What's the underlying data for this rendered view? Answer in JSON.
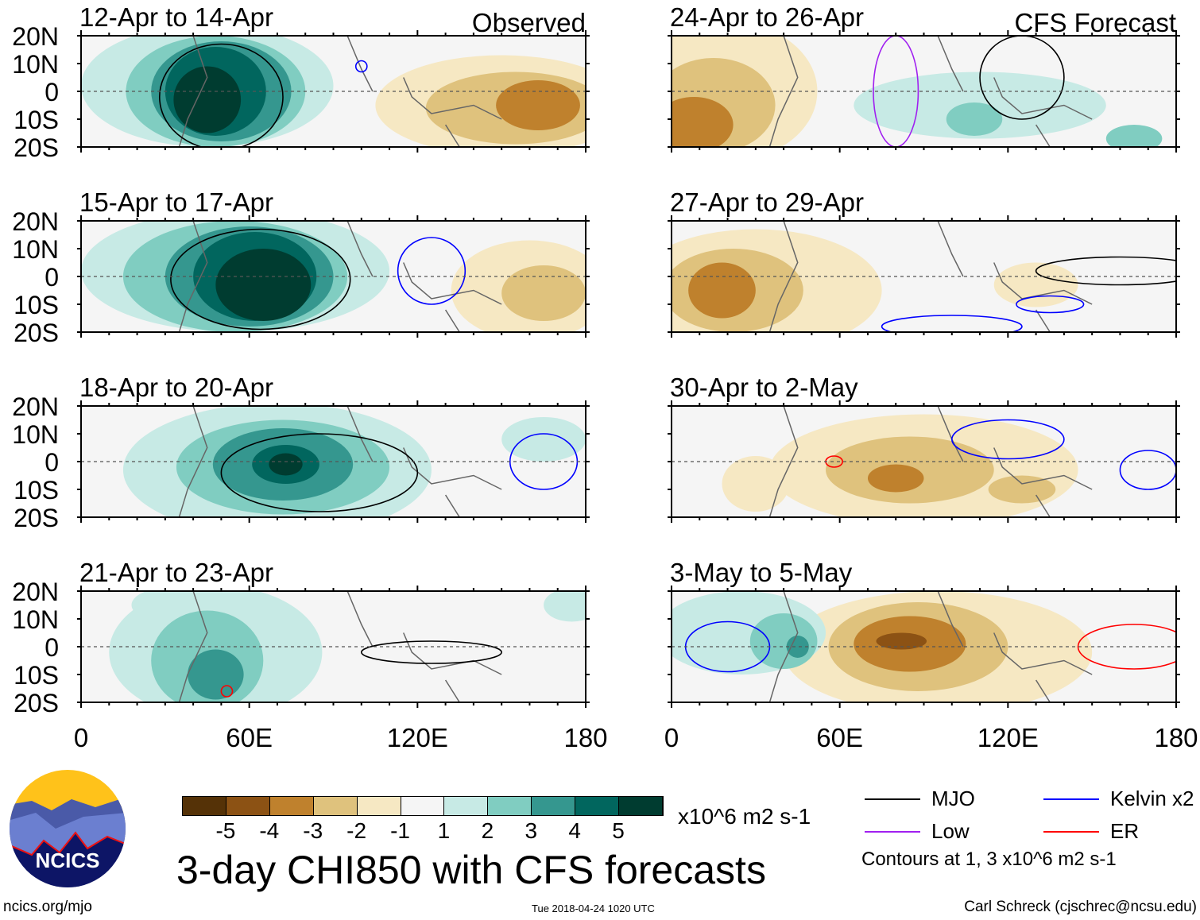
{
  "chart_data": {
    "type": "heatmap",
    "title": "3-day CHI850 with CFS forecasts",
    "units": "x10^6 m2 s-1",
    "column_headers": {
      "left": "Observed",
      "right": "CFS Forecast"
    },
    "lat_ticks": [
      "20N",
      "10N",
      "0",
      "10S",
      "20S"
    ],
    "lon_ticks": [
      "0",
      "60E",
      "120E",
      "180"
    ],
    "lon_range": [
      0,
      180
    ],
    "lat_range": [
      -20,
      20
    ],
    "colorbar": {
      "labels": [
        "-5",
        "-4",
        "-3",
        "-2",
        "-1",
        "1",
        "2",
        "3",
        "4",
        "5"
      ],
      "colors": [
        "#553207",
        "#8c5214",
        "#bf812d",
        "#dfc27d",
        "#f6e8c3",
        "#f5f5f5",
        "#c7eae5",
        "#80cdc1",
        "#35978f",
        "#01665e",
        "#003c30"
      ]
    },
    "legend": {
      "items": [
        {
          "label": "MJO",
          "color": "#000000"
        },
        {
          "label": "Kelvin x2",
          "color": "#0000ff"
        },
        {
          "label": "Low",
          "color": "#a020f0"
        },
        {
          "label": "ER",
          "color": "#ff0000"
        }
      ],
      "note": "Contours at 1, 3 x10^6 m2 s-1"
    },
    "panels": [
      {
        "title": "12-Apr to 14-Apr",
        "column": "left",
        "row": 0,
        "blobs": [
          [
            45,
            2,
            45,
            22,
            1
          ],
          [
            48,
            0,
            32,
            20,
            2
          ],
          [
            50,
            0,
            25,
            18,
            3
          ],
          [
            48,
            0,
            18,
            16,
            4
          ],
          [
            45,
            -3,
            12,
            12,
            5
          ],
          [
            150,
            -5,
            45,
            18,
            -1
          ],
          [
            155,
            -6,
            32,
            13,
            -2
          ],
          [
            163,
            -5,
            15,
            9,
            -3
          ]
        ],
        "contours": [
          [
            50,
            -2,
            22,
            19,
            "MJO"
          ],
          [
            100,
            9,
            2,
            2,
            "Kelvin"
          ]
        ]
      },
      {
        "title": "15-Apr to 17-Apr",
        "column": "left",
        "row": 1,
        "blobs": [
          [
            55,
            2,
            55,
            22,
            1
          ],
          [
            55,
            0,
            40,
            20,
            2
          ],
          [
            60,
            0,
            30,
            18,
            3
          ],
          [
            62,
            0,
            22,
            16,
            4
          ],
          [
            65,
            -3,
            17,
            13,
            5
          ],
          [
            160,
            -5,
            28,
            18,
            -1
          ],
          [
            165,
            -6,
            15,
            10,
            -2
          ]
        ],
        "contours": [
          [
            64,
            -1,
            32,
            18,
            "MJO"
          ],
          [
            125,
            2,
            12,
            12,
            "Kelvin"
          ]
        ]
      },
      {
        "title": "18-Apr to 20-Apr",
        "column": "left",
        "row": 2,
        "blobs": [
          [
            70,
            -3,
            55,
            24,
            1
          ],
          [
            72,
            -2,
            38,
            17,
            2
          ],
          [
            72,
            -1,
            25,
            13,
            3
          ],
          [
            73,
            -1,
            12,
            7,
            4
          ],
          [
            73,
            -1,
            6,
            4,
            5
          ],
          [
            165,
            8,
            15,
            8,
            1
          ]
        ],
        "contours": [
          [
            85,
            -4,
            35,
            14,
            "MJO"
          ],
          [
            165,
            0,
            12,
            10,
            "Kelvin"
          ]
        ]
      },
      {
        "title": "21-Apr to 23-Apr",
        "column": "left",
        "row": 3,
        "blobs": [
          [
            48,
            -2,
            38,
            24,
            1
          ],
          [
            45,
            -5,
            20,
            18,
            2
          ],
          [
            48,
            -10,
            10,
            9,
            3
          ],
          [
            30,
            15,
            12,
            6,
            1
          ],
          [
            175,
            15,
            10,
            6,
            1
          ]
        ],
        "contours": [
          [
            125,
            -2,
            25,
            4,
            "MJO"
          ],
          [
            52,
            -16,
            2,
            2,
            "ER"
          ]
        ]
      },
      {
        "title": "24-Apr to 26-Apr",
        "column": "right",
        "row": 0,
        "blobs": [
          [
            20,
            0,
            32,
            25,
            -1
          ],
          [
            15,
            -5,
            22,
            17,
            -2
          ],
          [
            8,
            -12,
            14,
            10,
            -3
          ],
          [
            110,
            -5,
            45,
            12,
            1
          ],
          [
            108,
            -10,
            10,
            6,
            2
          ],
          [
            165,
            -17,
            10,
            5,
            2
          ]
        ],
        "contours": [
          [
            125,
            5,
            15,
            15,
            "MJO"
          ],
          [
            80,
            0,
            8,
            20,
            "Low"
          ]
        ]
      },
      {
        "title": "27-Apr to 29-Apr",
        "column": "right",
        "row": 1,
        "blobs": [
          [
            30,
            -5,
            45,
            22,
            -1
          ],
          [
            22,
            -5,
            25,
            15,
            -2
          ],
          [
            18,
            -5,
            12,
            10,
            -3
          ],
          [
            130,
            -3,
            15,
            8,
            -1
          ]
        ],
        "contours": [
          [
            160,
            2,
            30,
            5,
            "MJO"
          ],
          [
            135,
            -10,
            12,
            3,
            "Kelvin"
          ],
          [
            100,
            -18,
            25,
            4,
            "Kelvin"
          ]
        ]
      },
      {
        "title": "30-Apr to 2-May",
        "column": "right",
        "row": 2,
        "blobs": [
          [
            90,
            -3,
            55,
            20,
            -1
          ],
          [
            85,
            -3,
            30,
            12,
            -2
          ],
          [
            80,
            -6,
            10,
            5,
            -3
          ],
          [
            125,
            -10,
            12,
            5,
            -2
          ],
          [
            30,
            -8,
            12,
            10,
            -1
          ]
        ],
        "contours": [
          [
            170,
            -3,
            10,
            7,
            "Kelvin"
          ],
          [
            120,
            8,
            20,
            7,
            "Kelvin"
          ],
          [
            58,
            0,
            3,
            2,
            "ER"
          ]
        ]
      },
      {
        "title": "3-May to 5-May",
        "column": "right",
        "row": 3,
        "blobs": [
          [
            95,
            -2,
            55,
            22,
            -1
          ],
          [
            88,
            0,
            32,
            16,
            -2
          ],
          [
            85,
            1,
            20,
            10,
            -3
          ],
          [
            82,
            2,
            9,
            3,
            -4
          ],
          [
            25,
            5,
            30,
            15,
            1
          ],
          [
            40,
            2,
            12,
            10,
            2
          ],
          [
            45,
            0,
            4,
            4,
            3
          ]
        ],
        "contours": [
          [
            165,
            0,
            20,
            8,
            "ER"
          ],
          [
            20,
            0,
            15,
            9,
            "Kelvin"
          ]
        ]
      }
    ]
  },
  "footer": {
    "logo_text": "NCICS",
    "url": "ncics.org/mjo",
    "timestamp": "Tue 2018-04-24 1020 UTC",
    "author": "Carl Schreck (cjschrec@ncsu.edu)"
  }
}
